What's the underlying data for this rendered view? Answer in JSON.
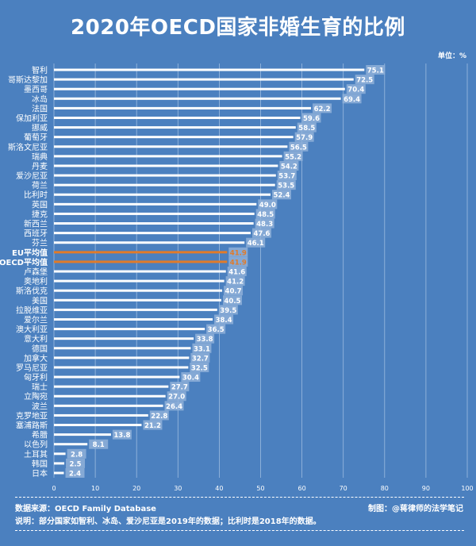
{
  "chart_data": {
    "type": "bar",
    "orientation": "horizontal",
    "title": "2020年OECD国家非婚生育的比例",
    "unit_label": "单位：%",
    "categories": [
      "智利",
      "哥斯达黎加",
      "墨西哥",
      "冰岛",
      "法国",
      "保加利亚",
      "挪威",
      "葡萄牙",
      "斯洛文尼亚",
      "瑞典",
      "丹麦",
      "爱沙尼亚",
      "荷兰",
      "比利时",
      "英国",
      "捷克",
      "新西兰",
      "西班牙",
      "芬兰",
      "EU平均值",
      "OECD平均值",
      "卢森堡",
      "奥地利",
      "斯洛伐克",
      "美国",
      "拉脱维亚",
      "爱尔兰",
      "澳大利亚",
      "意大利",
      "德国",
      "加拿大",
      "罗马尼亚",
      "匈牙利",
      "瑞士",
      "立陶宛",
      "波兰",
      "克罗地亚",
      "塞浦路斯",
      "希腊",
      "以色列",
      "土耳其",
      "韩国",
      "日本"
    ],
    "values": [
      75.1,
      72.5,
      70.4,
      69.4,
      62.2,
      59.6,
      58.5,
      57.9,
      56.5,
      55.2,
      54.2,
      53.7,
      53.5,
      52.4,
      49.0,
      48.5,
      48.3,
      47.6,
      46.1,
      41.9,
      41.9,
      41.6,
      41.2,
      40.7,
      40.5,
      39.5,
      38.4,
      36.5,
      33.8,
      33.1,
      32.7,
      32.5,
      30.4,
      27.7,
      27.0,
      26.4,
      22.8,
      21.2,
      13.8,
      8.1,
      2.8,
      2.5,
      2.4
    ],
    "highlight": [
      "EU平均值",
      "OECD平均值"
    ],
    "xlim": [
      0,
      100
    ],
    "xticks": [
      0,
      10,
      20,
      30,
      40,
      50,
      60,
      70,
      80,
      90,
      100
    ],
    "grid": true,
    "colors": {
      "background": "#4b80bf",
      "bar": "#ffffff",
      "highlight": "#e07b2a",
      "label_box": "#8fb0d8"
    }
  },
  "footer": {
    "source": "数据来源：OECD Family Database",
    "credit": "制图：@蒋律师的法学笔记",
    "note": "说明：部分国家如智利、冰岛、爱沙尼亚是2019年的数据；比利时是2018年的数据。"
  }
}
